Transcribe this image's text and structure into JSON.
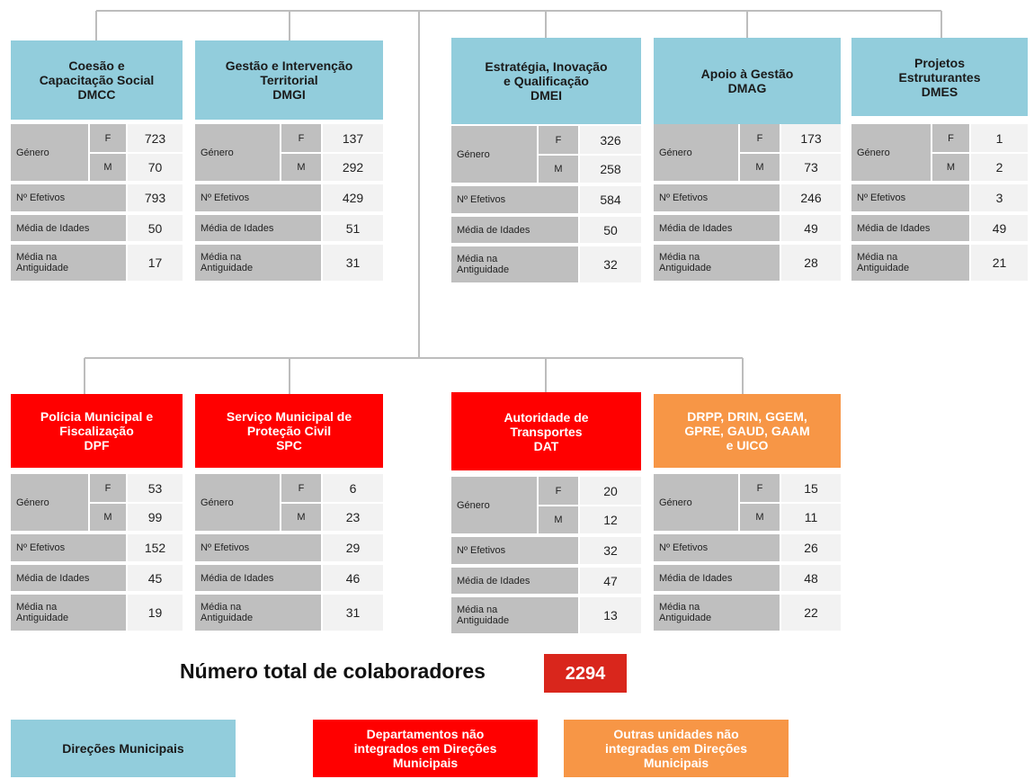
{
  "labels": {
    "genero": "Género",
    "f": "F",
    "m": "M",
    "efetivos": "Nº Efetivos",
    "idades": "Média de Idades",
    "antiguidade": "Média na Antiguidade"
  },
  "units": [
    {
      "title": [
        "Coesão e",
        "Capacitação Social",
        "DMCC"
      ],
      "color": "#92cddc",
      "f": 723,
      "m": 70,
      "efetivos": 793,
      "idades": 50,
      "antiguidade": 17
    },
    {
      "title": [
        "Gestão e Intervenção",
        "Territorial",
        "DMGI"
      ],
      "color": "#92cddc",
      "f": 137,
      "m": 292,
      "efetivos": 429,
      "idades": 51,
      "antiguidade": 31
    },
    {
      "title": [
        "Estratégia, Inovação",
        "e Qualificação",
        "DMEI"
      ],
      "color": "#92cddc",
      "f": 326,
      "m": 258,
      "efetivos": 584,
      "idades": 50,
      "antiguidade": 32
    },
    {
      "title": [
        "Apoio à Gestão",
        "DMAG"
      ],
      "color": "#92cddc",
      "f": 173,
      "m": 73,
      "efetivos": 246,
      "idades": 49,
      "antiguidade": 28
    },
    {
      "title": [
        "Projetos",
        "Estruturantes",
        "DMES"
      ],
      "color": "#92cddc",
      "f": 1,
      "m": 2,
      "efetivos": 3,
      "idades": 49,
      "antiguidade": 21
    },
    {
      "title": [
        "Polícia Municipal e",
        "Fiscalização",
        "DPF"
      ],
      "color": "#ff0000",
      "f": 53,
      "m": 99,
      "efetivos": 152,
      "idades": 45,
      "antiguidade": 19
    },
    {
      "title": [
        "Serviço Municipal de",
        "Proteção Civil",
        "SPC"
      ],
      "color": "#ff0000",
      "f": 6,
      "m": 23,
      "efetivos": 29,
      "idades": 46,
      "antiguidade": 31
    },
    {
      "title": [
        "Autoridade de",
        "Transportes",
        "DAT"
      ],
      "color": "#ff0000",
      "f": 20,
      "m": 12,
      "efetivos": 32,
      "idades": 47,
      "antiguidade": 13
    },
    {
      "title": [
        "DRPP, DRIN, GGEM,",
        "GPRE, GAUD, GAAM",
        "e UICO"
      ],
      "color": "#f79646",
      "f": 15,
      "m": 11,
      "efetivos": 26,
      "idades": 48,
      "antiguidade": 22
    }
  ],
  "total": {
    "label": "Número total de colaboradores",
    "value": 2294,
    "color": "#d9261c"
  },
  "legend": [
    {
      "label": [
        "Direções Municipais"
      ],
      "color": "#92cddc"
    },
    {
      "label": [
        "Departamentos não",
        "integrados em Direções",
        "Municipais"
      ],
      "color": "#ff0000"
    },
    {
      "label": [
        "Outras unidades não",
        "integradas em Direções",
        "Municipais"
      ],
      "color": "#f79646"
    }
  ]
}
